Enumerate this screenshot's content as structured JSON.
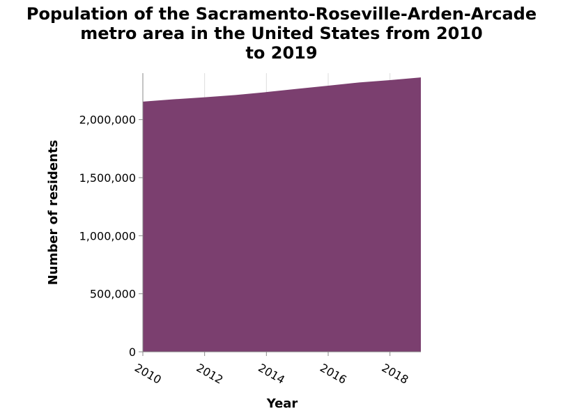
{
  "chart_data": {
    "type": "area",
    "title_lines": [
      "Population of the Sacramento-Roseville-Arden-Arcade",
      "metro area in the United States from 2010",
      "to 2019"
    ],
    "xlabel": "Year",
    "ylabel": "Number of residents",
    "x": [
      2010,
      2011,
      2012,
      2013,
      2014,
      2015,
      2016,
      2017,
      2018,
      2019
    ],
    "values": [
      2155000,
      2175000,
      2192000,
      2212000,
      2237000,
      2265000,
      2292000,
      2320000,
      2340000,
      2363000
    ],
    "xlim": [
      2010,
      2019
    ],
    "ylim": [
      0,
      2400000
    ],
    "x_ticks": [
      2010,
      2012,
      2014,
      2016,
      2018
    ],
    "x_tick_labels": [
      "2010",
      "2012",
      "2014",
      "2016",
      "2018"
    ],
    "y_ticks": [
      0,
      500000,
      1000000,
      1500000,
      2000000
    ],
    "y_tick_labels": [
      "0",
      "500,000",
      "1,000,000",
      "1,500,000",
      "2,000,000"
    ],
    "fill_color": "#7b3f6f",
    "grid": true
  }
}
